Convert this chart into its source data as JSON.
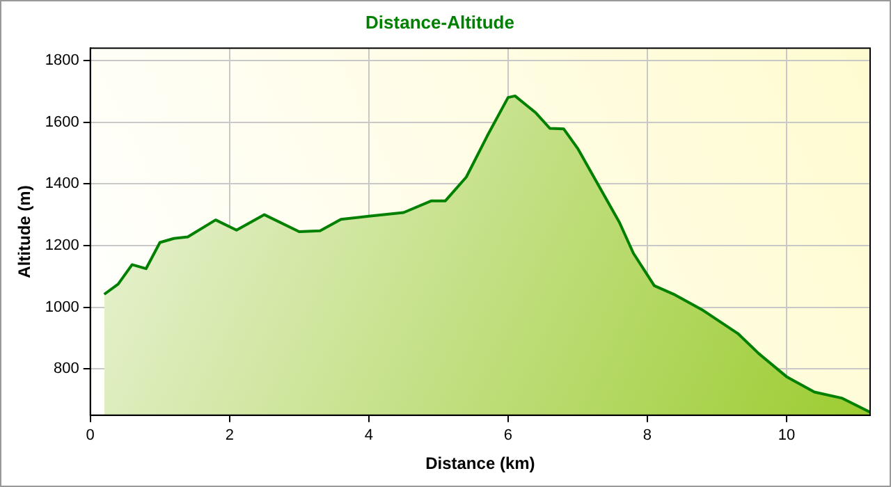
{
  "chart_data": {
    "type": "area",
    "title": "Distance-Altitude",
    "xlabel": "Distance (km)",
    "ylabel": "Altitude (m)",
    "xlim": [
      0,
      11.2
    ],
    "xticks": [
      0,
      2,
      4,
      6,
      8,
      10
    ],
    "ylim": [
      650,
      1840
    ],
    "yticks": [
      800,
      1000,
      1200,
      1400,
      1600,
      1800
    ],
    "grid": true,
    "legend": false,
    "marker": "none",
    "line_style": "solid",
    "series": [
      {
        "color": "#008000",
        "x": [
          0.2,
          0.4,
          0.6,
          0.8,
          1.0,
          1.2,
          1.4,
          1.8,
          2.1,
          2.5,
          3.0,
          3.3,
          3.6,
          4.0,
          4.5,
          4.9,
          5.1,
          5.4,
          5.7,
          6.0,
          6.1,
          6.4,
          6.6,
          6.8,
          7.0,
          7.3,
          7.6,
          7.8,
          8.1,
          8.4,
          8.8,
          9.3,
          9.6,
          10.0,
          10.4,
          10.8,
          11.2
        ],
        "values": [
          1042,
          1075,
          1138,
          1125,
          1210,
          1223,
          1228,
          1283,
          1250,
          1300,
          1245,
          1248,
          1285,
          1295,
          1307,
          1345,
          1345,
          1422,
          1555,
          1680,
          1685,
          1630,
          1580,
          1578,
          1515,
          1395,
          1275,
          1175,
          1070,
          1040,
          990,
          915,
          850,
          775,
          725,
          705,
          660
        ]
      }
    ]
  }
}
